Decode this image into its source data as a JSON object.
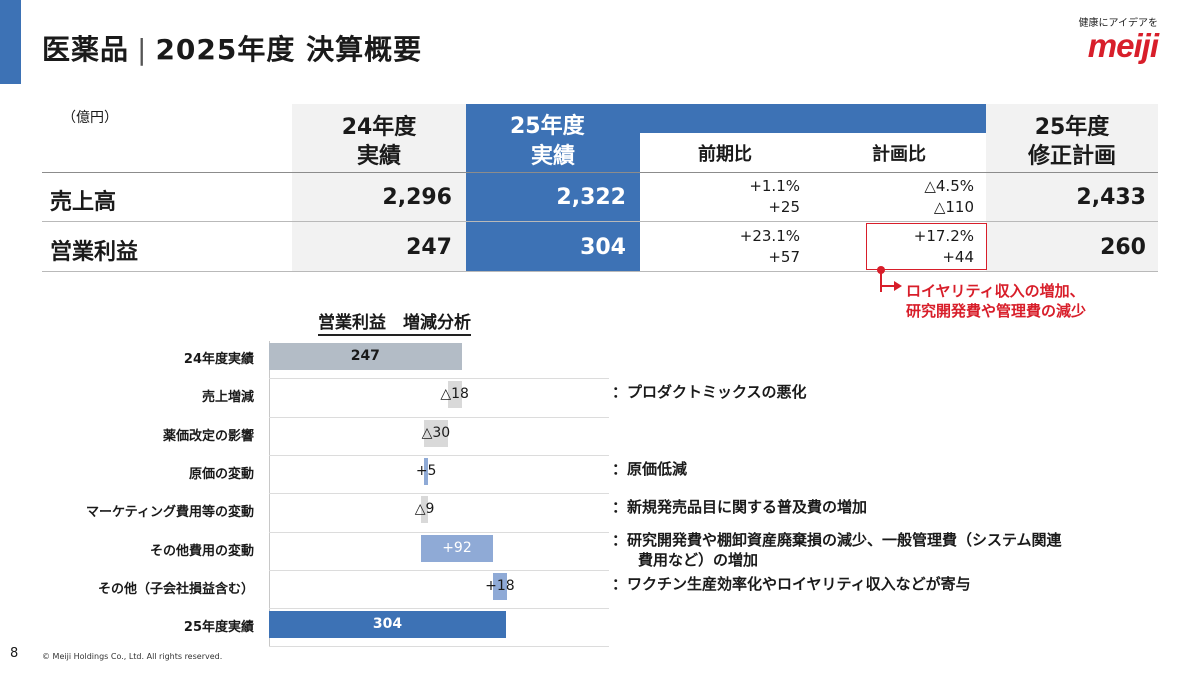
{
  "header": {
    "title_main": "医薬品",
    "title_sep": "|",
    "title_sub": "2025年度 決算概要",
    "logo_tagline": "健康にアイデアを",
    "logo_word": "meiji"
  },
  "table": {
    "unit": "（億円）",
    "col_24": [
      "24年度",
      "実績"
    ],
    "col_25": [
      "25年度",
      "実績"
    ],
    "col_yoy": "前期比",
    "col_plan": "計画比",
    "col_rev": [
      "25年度",
      "修正計画"
    ],
    "rows": [
      {
        "label": "売上高",
        "v24": "2,296",
        "v25": "2,322",
        "yoy_pct": "+1.1%",
        "yoy_abs": "+25",
        "plan_pct": "△4.5%",
        "plan_abs": "△110",
        "rev": "2,433"
      },
      {
        "label": "営業利益",
        "v24": "247",
        "v25": "304",
        "yoy_pct": "+23.1%",
        "yoy_abs": "+57",
        "plan_pct": "+17.2%",
        "plan_abs": "+44",
        "rev": "260"
      }
    ],
    "callout": [
      "ロイヤリティ収入の増加、",
      "研究開発費や管理費の減少"
    ]
  },
  "waterfall": {
    "title": "営業利益　増減分析",
    "items": [
      {
        "label": "24年度実績",
        "value_label": "247",
        "note": ""
      },
      {
        "label": "売上増減",
        "value_label": "△18",
        "note": "：プロダクトミックスの悪化"
      },
      {
        "label": "薬価改定の影響",
        "value_label": "△30",
        "note": ""
      },
      {
        "label": "原価の変動",
        "value_label": "+5",
        "note": "：原価低減"
      },
      {
        "label": "マーケティング費用等の変動",
        "value_label": "△9",
        "note": "：新規発売品目に関する普及費の増加"
      },
      {
        "label": "その他費用の変動",
        "value_label": "+92",
        "note": "：研究開発費や棚卸資産廃棄損の減少、一般管理費（システム関連",
        "note2": "費用など）の増加"
      },
      {
        "label": "その他（子会社損益含む）",
        "value_label": "+18",
        "note": "：ワクチン生産効率化やロイヤリティ収入などが寄与"
      },
      {
        "label": "25年度実績",
        "value_label": "304",
        "note": ""
      }
    ]
  },
  "chart_data": {
    "type": "bar",
    "title": "営業利益　増減分析",
    "categories": [
      "24年度実績",
      "売上増減",
      "薬価改定の影響",
      "原価の変動",
      "マーケティング費用等の変動",
      "その他費用の変動",
      "その他（子会社損益含む）",
      "25年度実績"
    ],
    "values": [
      247,
      -18,
      -30,
      5,
      -9,
      92,
      18,
      304
    ],
    "colors": {
      "total_start": "#b3bcc6",
      "decrease": "#d9d9d9",
      "increase": "#8faad6",
      "total_end": "#3d72b5"
    }
  },
  "footer": {
    "page": "8",
    "copyright": "© Meiji Holdings Co., Ltd. All rights reserved."
  }
}
